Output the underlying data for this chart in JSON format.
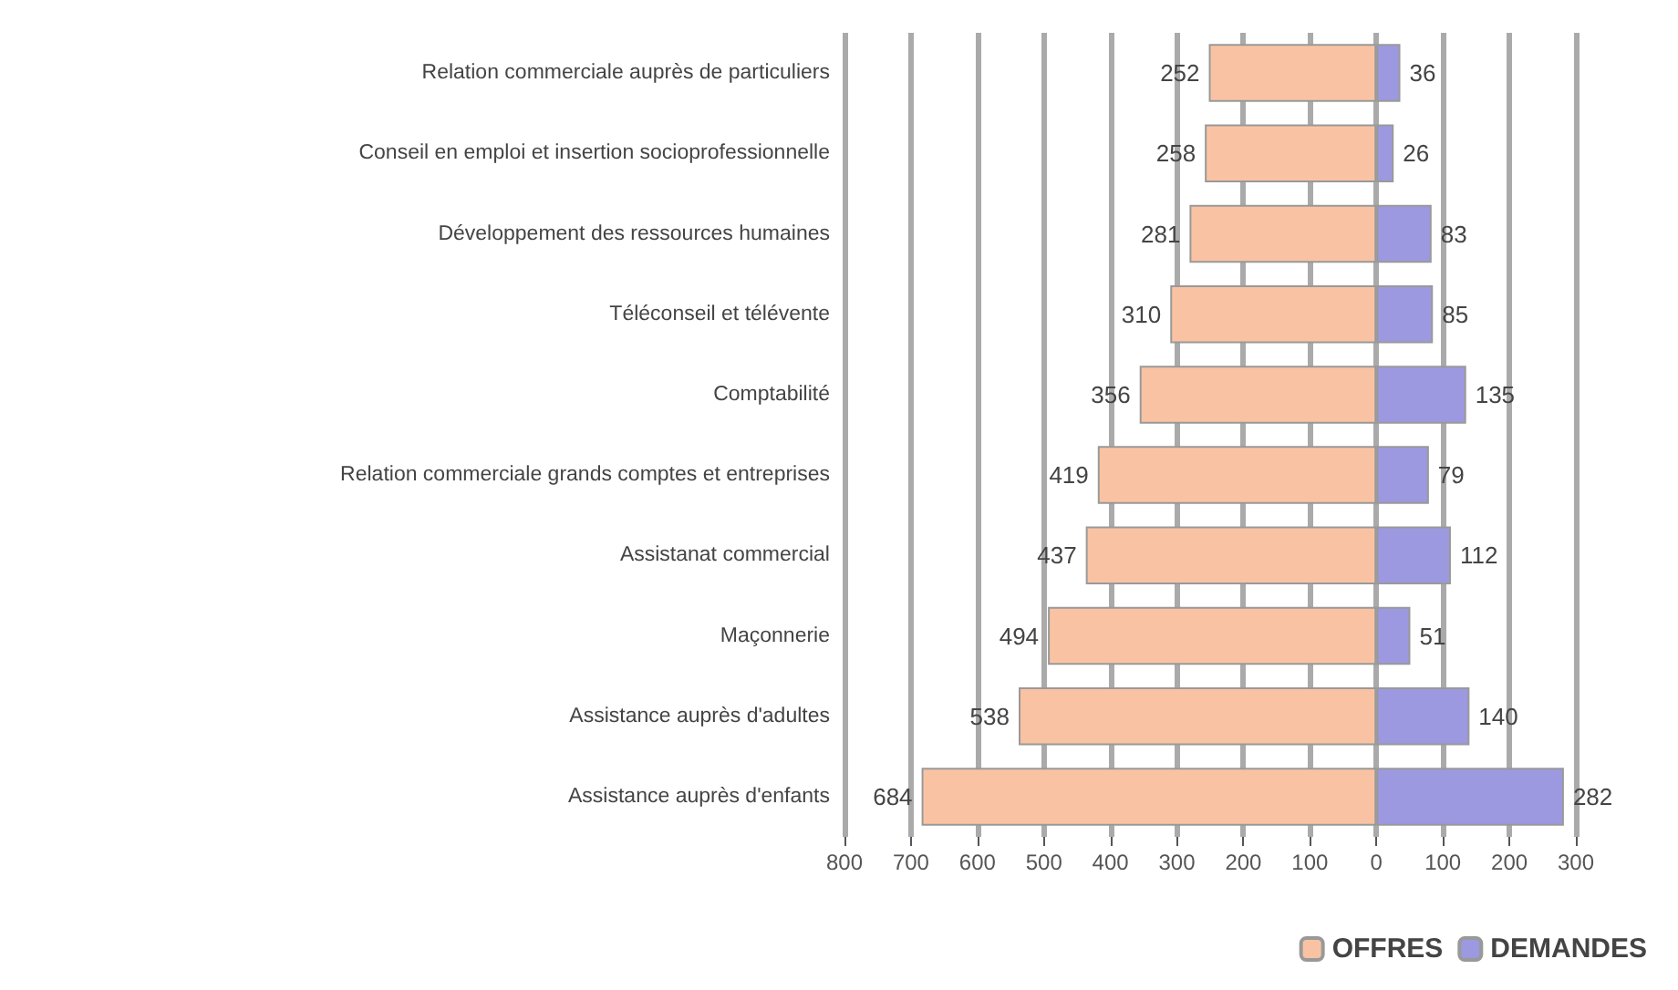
{
  "chart_data": {
    "type": "bar",
    "orientation": "horizontal",
    "categories": [
      "Relation commerciale auprès de particuliers",
      "Conseil en emploi et insertion socioprofessionnelle",
      "Développement des ressources humaines",
      "Téléconseil et télévente",
      "Comptabilité",
      "Relation commerciale grands comptes et entreprises",
      "Assistanat commercial",
      "Maçonnerie",
      "Assistance auprès d'adultes",
      "Assistance auprès d'enfants"
    ],
    "series": [
      {
        "name": "OFFRES",
        "color": "#f9c3a3",
        "base": [
          -252,
          -258,
          -281,
          -310,
          -356,
          -419,
          -437,
          -494,
          -538,
          -684
        ],
        "values": [
          252,
          258,
          281,
          310,
          356,
          419,
          437,
          494,
          538,
          684
        ],
        "value_labels": [
          "252",
          "258",
          "281",
          "310",
          "356",
          "419",
          "437",
          "494",
          "538",
          "684"
        ]
      },
      {
        "name": "DEMANDES",
        "color": "#9c99e0",
        "values": [
          36,
          26,
          83,
          85,
          135,
          79,
          112,
          51,
          140,
          282
        ],
        "value_labels": [
          "36",
          "26",
          "83",
          "85",
          "135",
          "79",
          "112",
          "51",
          "140",
          "282"
        ]
      }
    ],
    "xlim": [
      -800,
      300
    ],
    "xticks": [
      {
        "value": -800,
        "label": "800"
      },
      {
        "value": -700,
        "label": "700"
      },
      {
        "value": -600,
        "label": "600"
      },
      {
        "value": -500,
        "label": "500"
      },
      {
        "value": -400,
        "label": "400"
      },
      {
        "value": -300,
        "label": "300"
      },
      {
        "value": -200,
        "label": "200"
      },
      {
        "value": -100,
        "label": "100"
      },
      0,
      100,
      200,
      300
    ],
    "grid": "x",
    "legend": "bottom right"
  }
}
